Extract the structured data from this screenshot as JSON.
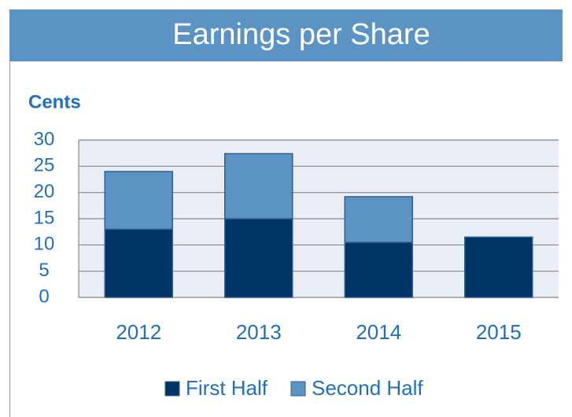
{
  "chart_data": {
    "type": "stacked_bar",
    "title": "Earnings per Share",
    "y_label": "Cents",
    "categories": [
      "2012",
      "2013",
      "2014",
      "2015"
    ],
    "series": [
      {
        "name": "First Half",
        "color": "#003366",
        "values": [
          13.0,
          15.0,
          10.5,
          11.5
        ]
      },
      {
        "name": "Second Half",
        "color": "#5b93c5",
        "values": [
          11.0,
          12.4,
          8.7,
          null
        ]
      }
    ],
    "ylim": [
      0,
      30
    ],
    "yticks": [
      0,
      5,
      10,
      15,
      20,
      25,
      30
    ],
    "grid": true,
    "legend": "bottom"
  }
}
